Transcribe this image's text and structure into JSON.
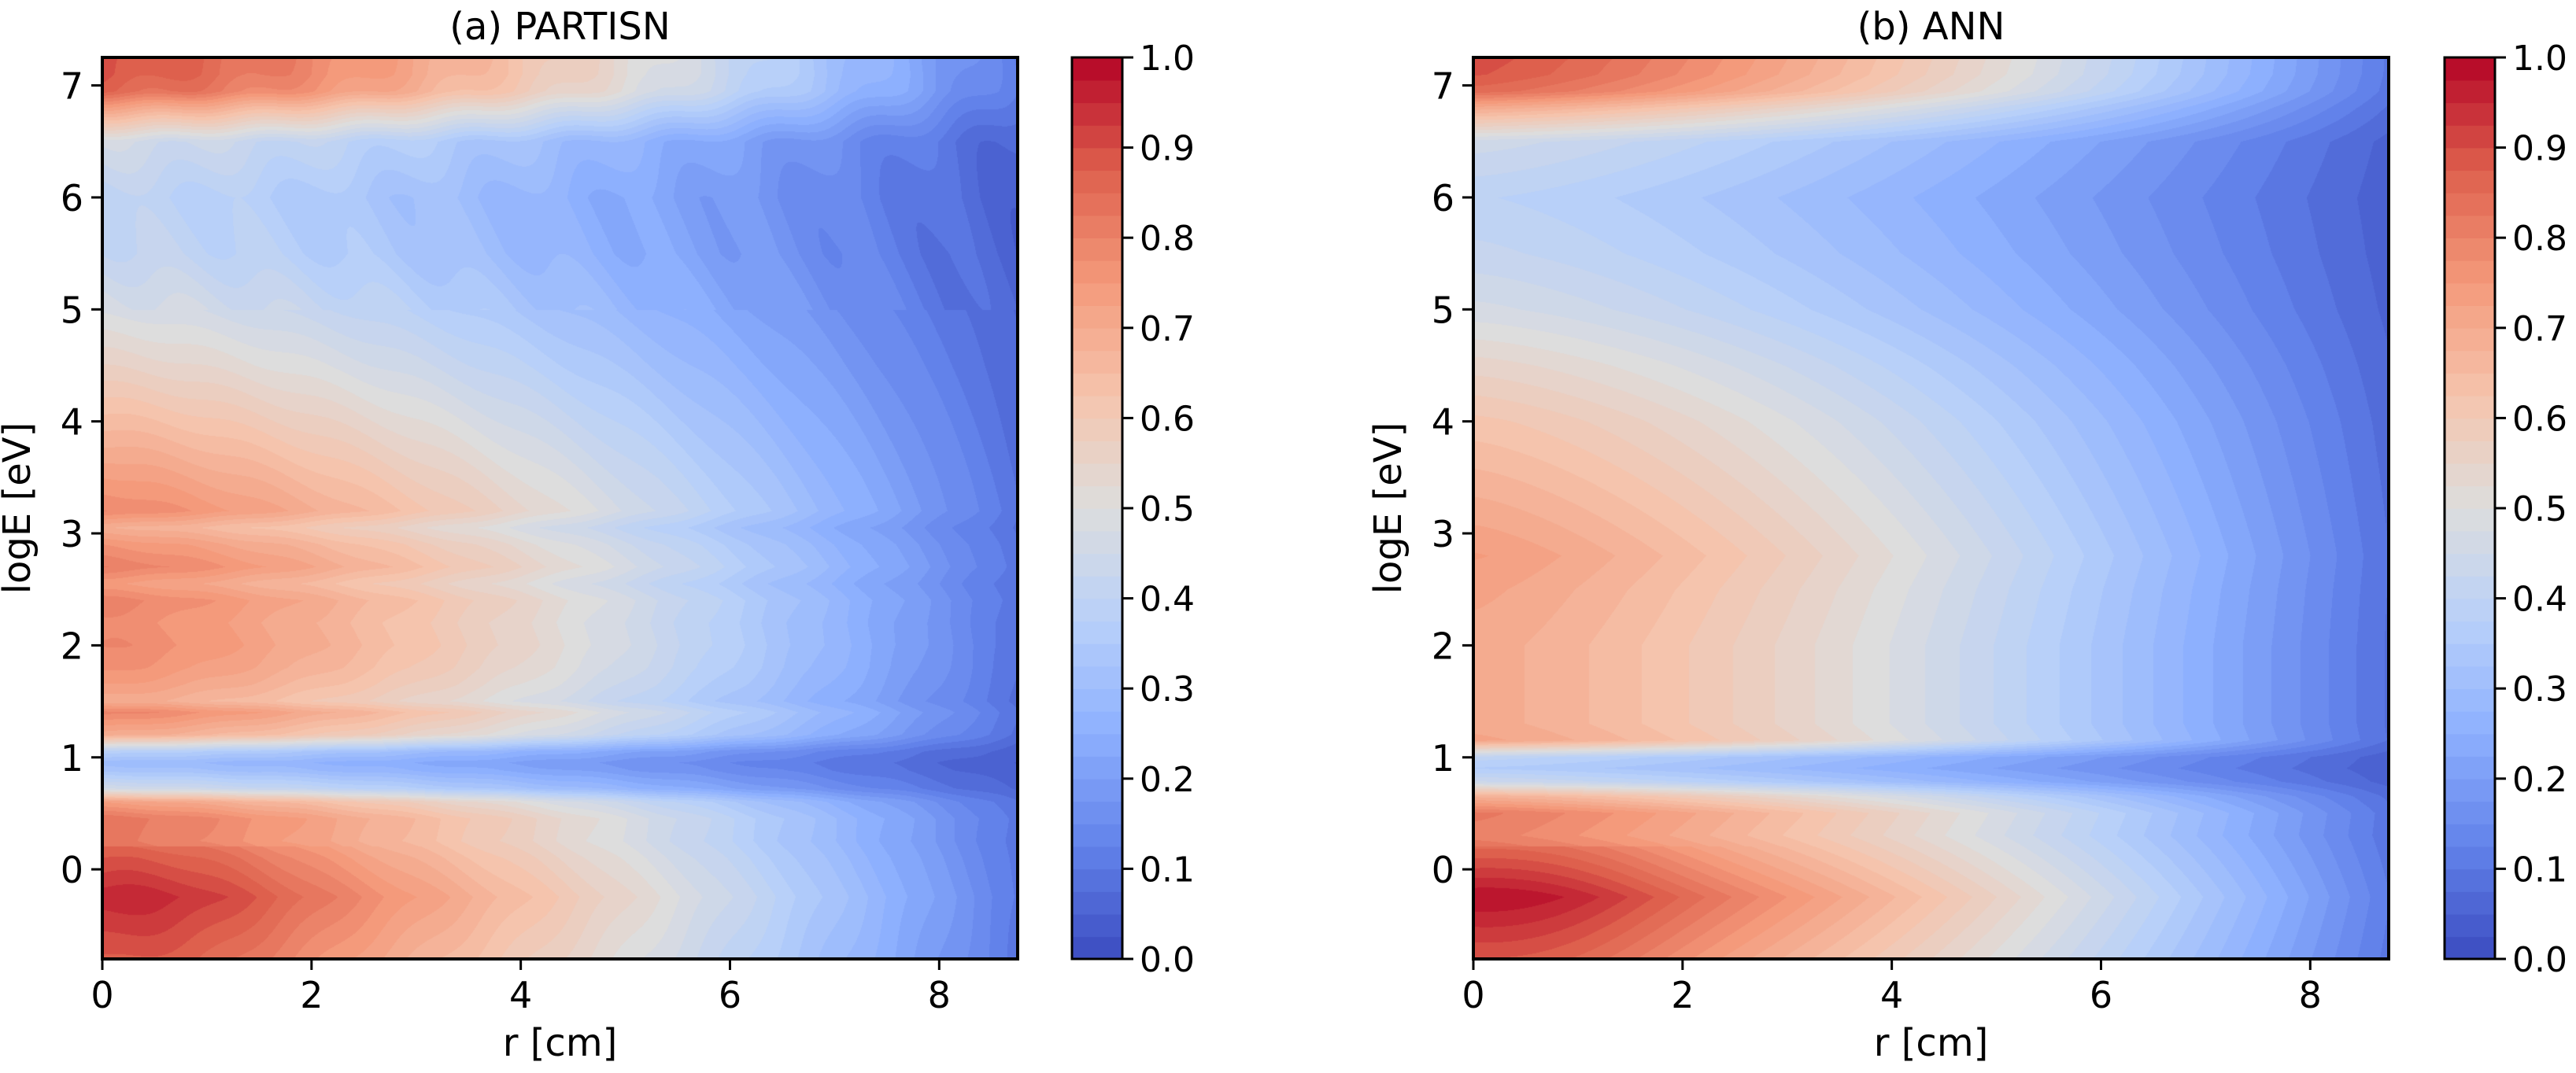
{
  "chart_data": [
    {
      "type": "heatmap",
      "title": "(a) PARTISN",
      "xlabel": "r [cm]",
      "ylabel": "logE [eV]",
      "xlim": [
        0,
        8.75
      ],
      "ylim": [
        -0.8,
        7.25
      ],
      "xticks": [
        0,
        2,
        4,
        6,
        8
      ],
      "yticks": [
        0,
        1,
        2,
        3,
        4,
        5,
        6,
        7
      ],
      "colormap": "coolwarm",
      "colorbar": {
        "range": [
          0.0,
          1.0
        ],
        "ticks": [
          "0.0",
          "0.1",
          "0.2",
          "0.3",
          "0.4",
          "0.5",
          "0.6",
          "0.7",
          "0.8",
          "0.9",
          "1.0"
        ]
      },
      "profile": {
        "logE": [
          -0.8,
          -0.25,
          0.1,
          0.25,
          0.45,
          0.6,
          0.72,
          0.88,
          0.95,
          1.05,
          1.2,
          1.4,
          1.5,
          1.65,
          1.8,
          2.0,
          2.2,
          2.4,
          2.55,
          2.7,
          2.9,
          3.05,
          3.2,
          3.5,
          4.0,
          4.5,
          5.0,
          5.5,
          6.0,
          6.5,
          6.8,
          6.95,
          7.1,
          7.25
        ],
        "value_at_r0": [
          0.86,
          0.93,
          0.86,
          0.82,
          0.83,
          0.73,
          0.46,
          0.33,
          0.3,
          0.38,
          0.7,
          0.8,
          0.7,
          0.74,
          0.77,
          0.79,
          0.78,
          0.8,
          0.74,
          0.81,
          0.76,
          0.69,
          0.79,
          0.74,
          0.65,
          0.56,
          0.48,
          0.42,
          0.4,
          0.46,
          0.72,
          0.86,
          0.89,
          0.9
        ]
      }
    },
    {
      "type": "heatmap",
      "title": "(b) ANN",
      "xlabel": "r [cm]",
      "ylabel": "logE [eV]",
      "xlim": [
        0,
        8.75
      ],
      "ylim": [
        -0.8,
        7.25
      ],
      "xticks": [
        0,
        2,
        4,
        6,
        8
      ],
      "yticks": [
        0,
        1,
        2,
        3,
        4,
        5,
        6,
        7
      ],
      "colormap": "coolwarm",
      "colorbar": {
        "range": [
          0.0,
          1.0
        ],
        "ticks": [
          "0.0",
          "0.1",
          "0.2",
          "0.3",
          "0.4",
          "0.5",
          "0.6",
          "0.7",
          "0.8",
          "0.9",
          "1.0"
        ]
      },
      "profile": {
        "logE": [
          -0.8,
          -0.25,
          0.1,
          0.3,
          0.5,
          0.65,
          0.78,
          0.9,
          1.0,
          1.15,
          1.3,
          1.6,
          2.0,
          2.5,
          2.8,
          3.2,
          3.6,
          4.0,
          4.5,
          5.0,
          5.5,
          6.0,
          6.5,
          6.8,
          6.95,
          7.1,
          7.25
        ],
        "value_at_r0": [
          0.86,
          0.96,
          0.86,
          0.8,
          0.82,
          0.68,
          0.44,
          0.36,
          0.4,
          0.72,
          0.7,
          0.7,
          0.7,
          0.72,
          0.74,
          0.7,
          0.66,
          0.62,
          0.55,
          0.47,
          0.42,
          0.39,
          0.45,
          0.7,
          0.85,
          0.89,
          0.9
        ]
      }
    }
  ]
}
